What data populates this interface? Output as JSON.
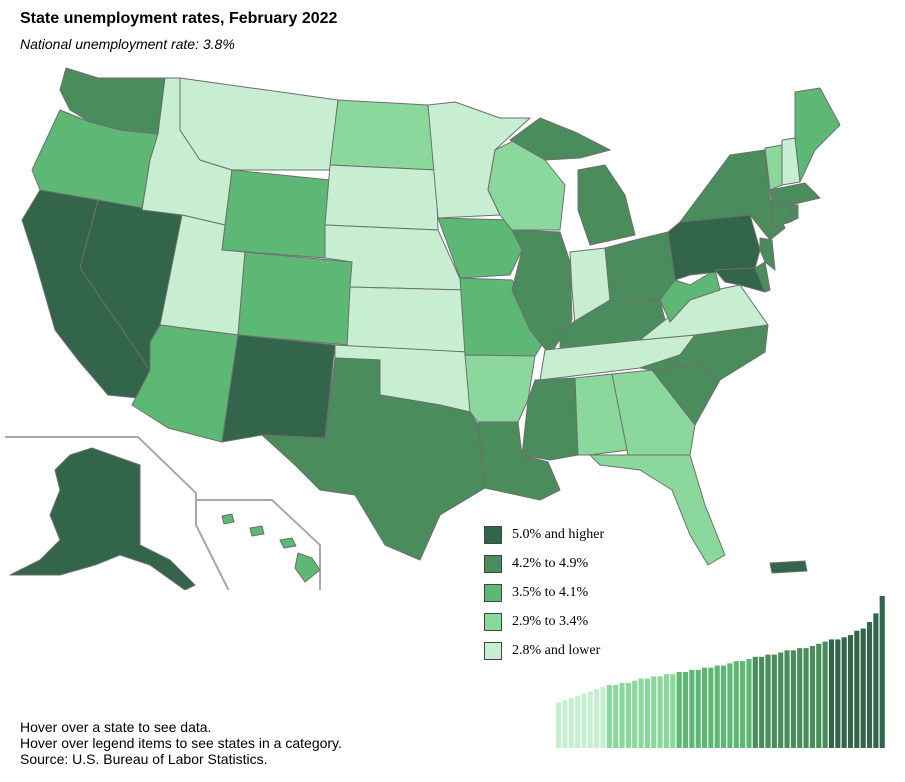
{
  "header": {
    "title": "State unemployment rates, February 2022",
    "subtitle": "National unemployment rate: 3.8%"
  },
  "colors": {
    "c5": "#33654a",
    "c4": "#4a8c5c",
    "c3": "#5cb874",
    "c2": "#8ad89b",
    "c1": "#c7eed0"
  },
  "legend": {
    "items": [
      {
        "label": "5.0% and higher",
        "color": "#33654a"
      },
      {
        "label": "4.2% to 4.9%",
        "color": "#4a8c5c"
      },
      {
        "label": "3.5% to 4.1%",
        "color": "#5cb874"
      },
      {
        "label": "2.9% to 3.4%",
        "color": "#8ad89b"
      },
      {
        "label": "2.8% and lower",
        "color": "#c7eed0"
      }
    ]
  },
  "footer": {
    "line1": "Hover over a state to see data.",
    "line2": "Hover over legend items to see states in a category.",
    "line3": "Source: U.S. Bureau of Labor Statistics."
  },
  "rank_bars": {
    "count": 52,
    "values": [
      2.1,
      2.2,
      2.3,
      2.4,
      2.5,
      2.6,
      2.7,
      2.8,
      2.9,
      2.9,
      3.0,
      3.0,
      3.1,
      3.2,
      3.2,
      3.3,
      3.3,
      3.4,
      3.4,
      3.5,
      3.5,
      3.6,
      3.6,
      3.7,
      3.7,
      3.8,
      3.8,
      3.9,
      4.0,
      4.0,
      4.1,
      4.2,
      4.2,
      4.3,
      4.3,
      4.4,
      4.5,
      4.5,
      4.6,
      4.6,
      4.7,
      4.8,
      4.9,
      5.0,
      5.0,
      5.1,
      5.2,
      5.4,
      5.5,
      5.8,
      6.2,
      7.0
    ]
  }
}
